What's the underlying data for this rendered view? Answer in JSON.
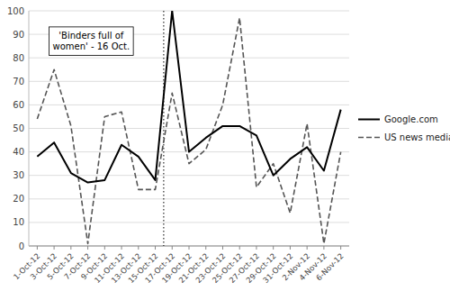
{
  "chart_data": {
    "type": "line",
    "categories": [
      "1-Oct-12",
      "3-Oct-12",
      "5-Oct-12",
      "7-Oct-12",
      "9-Oct-12",
      "11-Oct-12",
      "13-Oct-12",
      "15-Oct-12",
      "17-Oct-12",
      "19-Oct-12",
      "21-Oct-12",
      "23-Oct-12",
      "25-Oct-12",
      "27-Oct-12",
      "29-Oct-12",
      "31-Oct-12",
      "2-Nov-12",
      "4-Nov-12",
      "6-Nov-12"
    ],
    "series": [
      {
        "name": "Google.com",
        "color": "#000000",
        "line_style": "solid",
        "values": [
          38,
          44,
          31,
          27,
          28,
          43,
          38,
          28,
          100,
          40,
          46,
          51,
          51,
          47,
          30,
          37,
          42,
          32,
          58
        ]
      },
      {
        "name": "US news media",
        "color": "#555555",
        "line_style": "dashed",
        "values": [
          54,
          75,
          51,
          1,
          55,
          57,
          24,
          24,
          65,
          35,
          41,
          60,
          97,
          25,
          35,
          14,
          52,
          1,
          40
        ]
      }
    ],
    "annotations": [
      {
        "text": "'Binders full of\nwomen' - 16 Oct.",
        "x": 7.5
      }
    ],
    "ylim": [
      0,
      100
    ],
    "yticks": [
      0,
      10,
      20,
      30,
      40,
      50,
      60,
      70,
      80,
      90,
      100
    ],
    "grid": true,
    "legend": "right"
  }
}
